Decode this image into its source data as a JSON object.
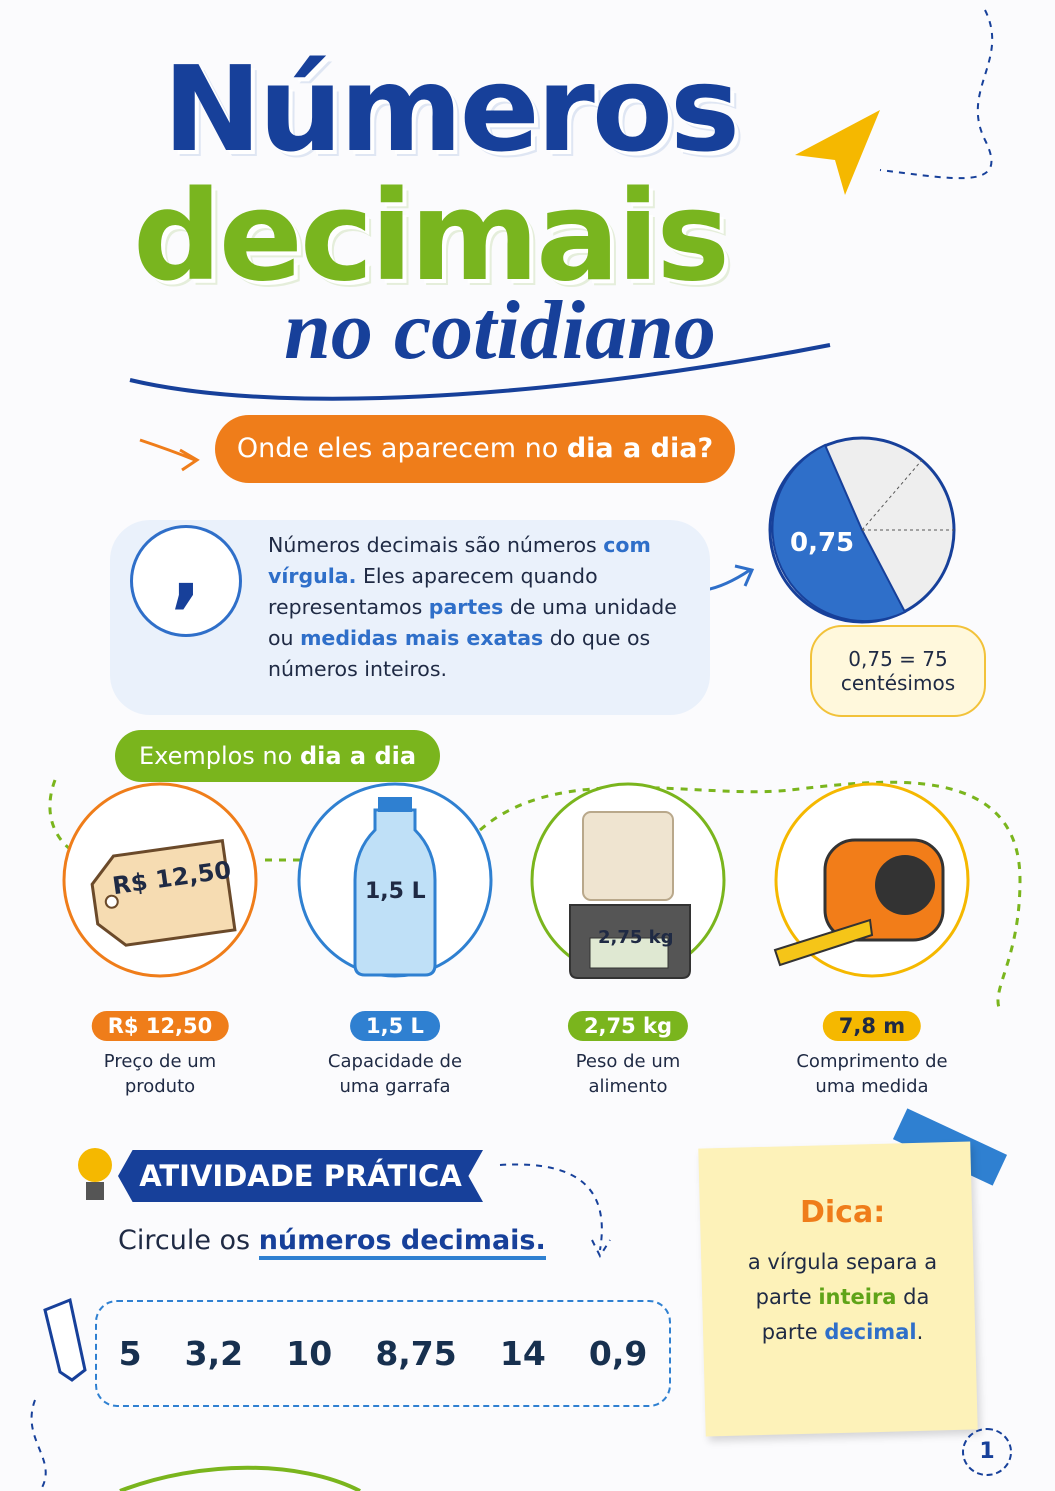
{
  "header": {
    "title_line1": "Números",
    "title_line2": "decimais",
    "title_line3": "no cotidiano"
  },
  "question": {
    "parts": [
      {
        "text": "Onde eles aparecem no ",
        "style": "plain"
      },
      {
        "text": "dia a dia?",
        "style": "bold"
      }
    ]
  },
  "intro": {
    "icon": ",",
    "parts": [
      {
        "text": "Números decimais são números ",
        "style": "plain"
      },
      {
        "text": "com vírgula.",
        "style": "blue"
      },
      {
        "text": " Eles aparecem quando representamos ",
        "style": "plain"
      },
      {
        "text": "partes",
        "style": "blue"
      },
      {
        "text": " de uma unidade ou ",
        "style": "plain"
      },
      {
        "text": "medidas mais exatas",
        "style": "blue"
      },
      {
        "text": " do que os números inteiros.",
        "style": "plain"
      }
    ]
  },
  "pie": {
    "label": "0,75",
    "note": "0,75 = 75 centésimos"
  },
  "examples": {
    "heading": {
      "parts": [
        {
          "text": "Exemplos no ",
          "style": "plain"
        },
        {
          "text": "dia a dia",
          "style": "bold"
        }
      ]
    },
    "items": [
      {
        "image_label": "R$ 12,50",
        "badge": "R$ 12,50",
        "description": "Preço de um produto",
        "color": "#ef7d1a"
      },
      {
        "image_label": "1,5 L",
        "badge": "1,5 L",
        "description": "Capacidade de uma garrafa",
        "color": "#2f80d1"
      },
      {
        "image_label": "2,75 kg",
        "badge": "2,75 kg",
        "description": "Peso de um alimento",
        "color": "#7ab51d"
      },
      {
        "badge": "7,8 m",
        "description": "Comprimento de uma medida",
        "color": "#f5b800"
      }
    ]
  },
  "activity": {
    "title": "ATIVIDADE PRÁTICA",
    "instruction": {
      "parts": [
        {
          "text": "Circule os ",
          "style": "plain"
        },
        {
          "text": "números decimais.",
          "style": "navy"
        }
      ]
    },
    "numbers": [
      "5",
      "3,2",
      "10",
      "8,75",
      "14",
      "0,9"
    ]
  },
  "tip": {
    "title": "Dica:",
    "parts": [
      {
        "text": "a vírgula separa a parte ",
        "style": "plain"
      },
      {
        "text": "inteira",
        "style": "green"
      },
      {
        "text": " da parte ",
        "style": "plain"
      },
      {
        "text": "decimal",
        "style": "blue"
      },
      {
        "text": ".",
        "style": "plain"
      }
    ]
  },
  "page_number": "1"
}
